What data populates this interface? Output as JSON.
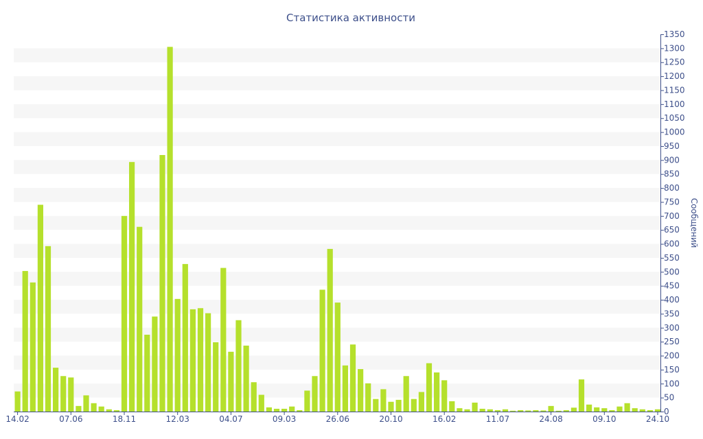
{
  "chart_data": {
    "type": "bar",
    "title": "Статистика активности",
    "xlabel": "",
    "ylabel": "Сообщений",
    "ylim": [
      0,
      1350
    ],
    "y_ticks": [
      0,
      50,
      100,
      150,
      200,
      250,
      300,
      350,
      400,
      450,
      500,
      550,
      600,
      650,
      700,
      750,
      800,
      850,
      900,
      950,
      1000,
      1050,
      1100,
      1150,
      1200,
      1250,
      1300,
      1350
    ],
    "y_axis_side": "right",
    "grid": "alternating horizontal bands",
    "bar_color": "#b5e02c",
    "band_color": "#f6f6f6",
    "axis_color": "#3d4f8a",
    "x_tick_labels": [
      {
        "label": "14.02",
        "index": 0
      },
      {
        "label": "07.06",
        "index": 7
      },
      {
        "label": "18.11",
        "index": 14
      },
      {
        "label": "12.03",
        "index": 21
      },
      {
        "label": "04.07",
        "index": 28
      },
      {
        "label": "09.03",
        "index": 35
      },
      {
        "label": "26.06",
        "index": 42
      },
      {
        "label": "20.10",
        "index": 49
      },
      {
        "label": "16.02",
        "index": 56
      },
      {
        "label": "11.07",
        "index": 63
      },
      {
        "label": "24.08",
        "index": 70
      },
      {
        "label": "09.10",
        "index": 77
      },
      {
        "label": "24.10",
        "index": 84
      }
    ],
    "values": [
      72,
      503,
      462,
      740,
      592,
      157,
      127,
      122,
      20,
      58,
      30,
      18,
      8,
      5,
      700,
      893,
      661,
      275,
      340,
      918,
      1305,
      403,
      528,
      366,
      370,
      352,
      248,
      514,
      214,
      327,
      236,
      105,
      60,
      15,
      10,
      10,
      18,
      5,
      75,
      127,
      436,
      582,
      390,
      165,
      240,
      152,
      101,
      45,
      80,
      35,
      42,
      127,
      45,
      70,
      173,
      140,
      112,
      37,
      12,
      8,
      32,
      10,
      8,
      5,
      8,
      3,
      5,
      4,
      5,
      4,
      20,
      3,
      5,
      14,
      115,
      25,
      15,
      12,
      5,
      18,
      30,
      12,
      8,
      5,
      8
    ]
  }
}
